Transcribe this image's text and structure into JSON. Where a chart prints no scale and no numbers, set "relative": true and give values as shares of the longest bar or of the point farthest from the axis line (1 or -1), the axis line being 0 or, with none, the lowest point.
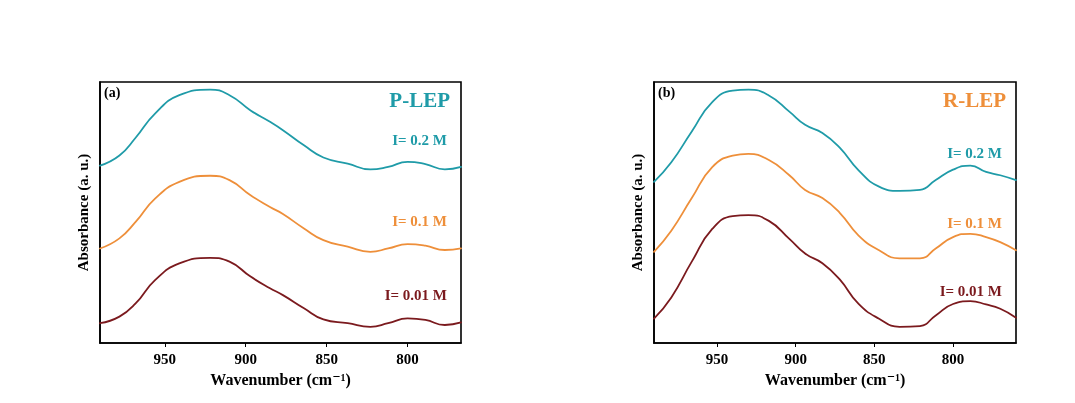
{
  "chart_data": [
    {
      "type": "line",
      "title": "P-LEP",
      "annotations": [
        "(a)"
      ],
      "xlabel": "Wavenumber (cm⁻¹)",
      "ylabel": "Absorbance (a. u.)",
      "relative": true,
      "legend": false,
      "grid": false,
      "marker": "none",
      "x": [
        990,
        978,
        968,
        956,
        941,
        922,
        910,
        897,
        885,
        877,
        864,
        852,
        837,
        823,
        812,
        800,
        789,
        777,
        767
      ],
      "xlim": [
        990,
        767
      ],
      "xticks": [
        950,
        900,
        850,
        800
      ],
      "series": [
        {
          "name": "I= 0.2 M",
          "color": "#1f9ba8",
          "values": [
            0.7,
            0.74,
            0.81,
            0.905,
            0.978,
            1.0,
            0.978,
            0.918,
            0.873,
            0.84,
            0.78,
            0.732,
            0.708,
            0.685,
            0.695,
            0.715,
            0.706,
            0.685,
            0.695
          ]
        },
        {
          "name": "I= 0.1 M",
          "color": "#ee8f3a",
          "values": [
            0.373,
            0.413,
            0.478,
            0.57,
            0.636,
            0.66,
            0.643,
            0.583,
            0.537,
            0.509,
            0.452,
            0.406,
            0.38,
            0.36,
            0.373,
            0.39,
            0.384,
            0.367,
            0.373
          ]
        },
        {
          "name": "I= 0.01 M",
          "color": "#7b1a1e",
          "values": [
            0.078,
            0.104,
            0.156,
            0.248,
            0.314,
            0.336,
            0.321,
            0.262,
            0.216,
            0.189,
            0.137,
            0.093,
            0.078,
            0.064,
            0.078,
            0.097,
            0.091,
            0.071,
            0.081
          ]
        }
      ]
    },
    {
      "type": "line",
      "title": "R-LEP",
      "annotations": [
        "(b)"
      ],
      "xlabel": "Wavenumber (cm⁻¹)",
      "ylabel": "Absorbance (a. u.)",
      "relative": true,
      "legend": false,
      "grid": false,
      "marker": "none",
      "x": [
        990,
        979,
        966,
        953,
        940,
        930,
        917,
        904,
        894,
        883,
        872,
        860,
        847,
        834,
        821,
        811,
        800,
        789,
        779,
        770,
        760
      ],
      "xlim": [
        990,
        760
      ],
      "xticks": [
        950,
        900,
        850,
        800
      ],
      "series": [
        {
          "name": "I= 0.2 M",
          "color": "#1f9ba8",
          "values": [
            0.636,
            0.713,
            0.835,
            0.951,
            0.996,
            1.0,
            0.977,
            0.913,
            0.861,
            0.829,
            0.771,
            0.681,
            0.617,
            0.6,
            0.604,
            0.643,
            0.684,
            0.7,
            0.675,
            0.662,
            0.643
          ]
        },
        {
          "name": "I= 0.1 M",
          "color": "#ee8f3a",
          "values": [
            0.36,
            0.443,
            0.572,
            0.694,
            0.739,
            0.746,
            0.722,
            0.662,
            0.604,
            0.572,
            0.514,
            0.424,
            0.366,
            0.334,
            0.334,
            0.373,
            0.418,
            0.431,
            0.418,
            0.398,
            0.366
          ]
        },
        {
          "name": "I= 0.01 M",
          "color": "#7b1a1e",
          "values": [
            0.096,
            0.18,
            0.321,
            0.45,
            0.501,
            0.505,
            0.482,
            0.411,
            0.353,
            0.315,
            0.251,
            0.154,
            0.096,
            0.064,
            0.067,
            0.109,
            0.154,
            0.165,
            0.152,
            0.135,
            0.1
          ]
        }
      ]
    }
  ]
}
